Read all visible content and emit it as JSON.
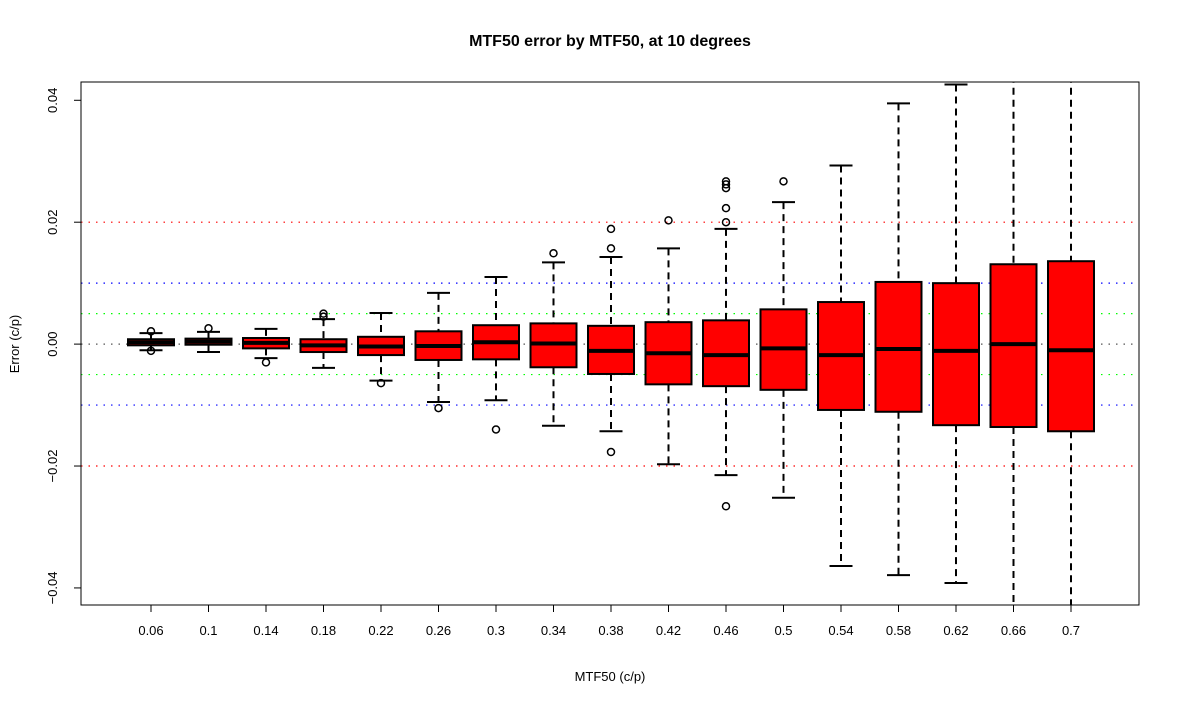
{
  "chart_data": {
    "type": "boxplot",
    "title": "MTF50 error by MTF50, at  10  degrees",
    "xlabel": "MTF50 (c/p)",
    "ylabel": "Error (c/p)",
    "ylim": [
      -0.0428,
      0.043
    ],
    "yticks": [
      -0.04,
      -0.02,
      0.0,
      0.02,
      0.04
    ],
    "ytick_labels": [
      "−0.04",
      "−0.02",
      "0.00",
      "0.02",
      "0.04"
    ],
    "grid": false,
    "box_color": "#ff0000",
    "reference_lines": [
      {
        "y": 0.02,
        "color": "#ff0000"
      },
      {
        "y": -0.02,
        "color": "#ff0000"
      },
      {
        "y": 0.01,
        "color": "#0000ff"
      },
      {
        "y": -0.01,
        "color": "#0000ff"
      },
      {
        "y": 0.005,
        "color": "#00ff00"
      },
      {
        "y": -0.005,
        "color": "#00ff00"
      },
      {
        "y": 0.0,
        "color": "#555555"
      }
    ],
    "categories": [
      "0.06",
      "0.1",
      "0.14",
      "0.18",
      "0.22",
      "0.26",
      "0.3",
      "0.34",
      "0.38",
      "0.42",
      "0.46",
      "0.5",
      "0.54",
      "0.58",
      "0.62",
      "0.66",
      "0.7"
    ],
    "boxes": [
      {
        "lo": -0.001,
        "q1": -0.0002,
        "med": 0.0003,
        "q3": 0.0008,
        "hi": 0.0018,
        "out": [
          0.0021,
          -0.0011
        ]
      },
      {
        "lo": -0.0013,
        "q1": -0.0001,
        "med": 0.0004,
        "q3": 0.0009,
        "hi": 0.002,
        "out": [
          0.0026
        ]
      },
      {
        "lo": -0.0023,
        "q1": -0.0007,
        "med": 0.0002,
        "q3": 0.001,
        "hi": 0.0025,
        "out": [
          -0.003
        ]
      },
      {
        "lo": -0.0039,
        "q1": -0.0013,
        "med": -0.0002,
        "q3": 0.0008,
        "hi": 0.0041,
        "out": [
          0.0045,
          0.005
        ]
      },
      {
        "lo": -0.006,
        "q1": -0.0018,
        "med": -0.0004,
        "q3": 0.0012,
        "hi": 0.0051,
        "out": [
          -0.0064
        ]
      },
      {
        "lo": -0.0095,
        "q1": -0.0026,
        "med": -0.0003,
        "q3": 0.0021,
        "hi": 0.0084,
        "out": [
          -0.0105
        ]
      },
      {
        "lo": -0.0092,
        "q1": -0.0025,
        "med": 0.0003,
        "q3": 0.0031,
        "hi": 0.011,
        "out": [
          -0.014
        ]
      },
      {
        "lo": -0.0134,
        "q1": -0.0038,
        "med": 0.0001,
        "q3": 0.0034,
        "hi": 0.0134,
        "out": [
          0.0149
        ]
      },
      {
        "lo": -0.0143,
        "q1": -0.0049,
        "med": -0.0011,
        "q3": 0.003,
        "hi": 0.0143,
        "out": [
          0.0157,
          0.0189,
          -0.0177
        ]
      },
      {
        "lo": -0.0197,
        "q1": -0.0066,
        "med": -0.0015,
        "q3": 0.0036,
        "hi": 0.0157,
        "out": [
          0.0203
        ]
      },
      {
        "lo": -0.0215,
        "q1": -0.0069,
        "med": -0.0018,
        "q3": 0.0039,
        "hi": 0.0189,
        "out": [
          0.0267,
          0.0262,
          0.0256,
          0.0223,
          0.02,
          -0.0266
        ]
      },
      {
        "lo": -0.0252,
        "q1": -0.0075,
        "med": -0.0007,
        "q3": 0.0057,
        "hi": 0.0233,
        "out": [
          0.0267
        ]
      },
      {
        "lo": -0.0364,
        "q1": -0.0108,
        "med": -0.0018,
        "q3": 0.0069,
        "hi": 0.0293,
        "out": []
      },
      {
        "lo": -0.0379,
        "q1": -0.0111,
        "med": -0.0008,
        "q3": 0.0102,
        "hi": 0.0395,
        "out": []
      },
      {
        "lo": -0.0392,
        "q1": -0.0133,
        "med": -0.0011,
        "q3": 0.01,
        "hi": 0.0426,
        "out": []
      },
      {
        "lo": -0.046,
        "q1": -0.0136,
        "med": 0.0,
        "q3": 0.0131,
        "hi": 0.046,
        "out": []
      },
      {
        "lo": -0.046,
        "q1": -0.0143,
        "med": -0.001,
        "q3": 0.0136,
        "hi": 0.046,
        "out": []
      }
    ]
  }
}
